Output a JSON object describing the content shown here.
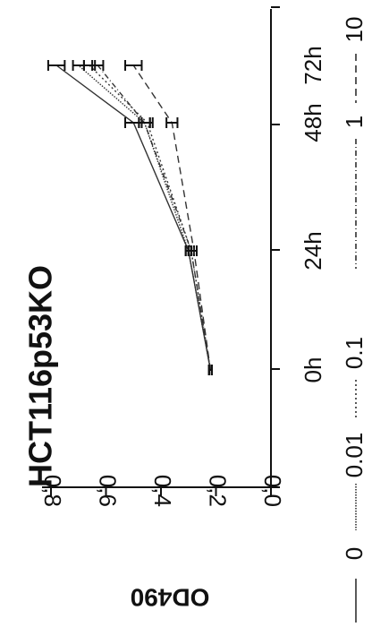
{
  "chart_data": {
    "type": "line",
    "title": "HCT116p53KO",
    "xlabel": "",
    "ylabel": "OD490",
    "categories": [
      "0h",
      "24h",
      "48h",
      "72h"
    ],
    "ylim": [
      0.0,
      0.8
    ],
    "yticks": [
      "0,0",
      "0,2",
      "0,4",
      "0,6",
      "0,8"
    ],
    "orientation": "rotated-90-clockwise",
    "grid": false,
    "legend_position": "bottom",
    "series": [
      {
        "name": "0",
        "dash": "solid",
        "values": [
          0.22,
          0.3,
          0.5,
          0.78
        ],
        "errors": [
          0.005,
          0.01,
          0.03,
          0.03
        ]
      },
      {
        "name": "0.01",
        "dash": "fine-dotted",
        "values": [
          0.22,
          0.3,
          0.46,
          0.7
        ],
        "errors": [
          0.005,
          0.01,
          0.02,
          0.02
        ]
      },
      {
        "name": "0.1",
        "dash": "dotted",
        "values": [
          0.22,
          0.29,
          0.45,
          0.66
        ],
        "errors": [
          0.005,
          0.01,
          0.02,
          0.02
        ]
      },
      {
        "name": "1",
        "dash": "dash-dot",
        "values": [
          0.22,
          0.29,
          0.46,
          0.63
        ],
        "errors": [
          0.005,
          0.01,
          0.02,
          0.02
        ]
      },
      {
        "name": "10",
        "dash": "long-dash",
        "values": [
          0.22,
          0.28,
          0.36,
          0.5
        ],
        "errors": [
          0.005,
          0.01,
          0.02,
          0.03
        ]
      }
    ]
  }
}
